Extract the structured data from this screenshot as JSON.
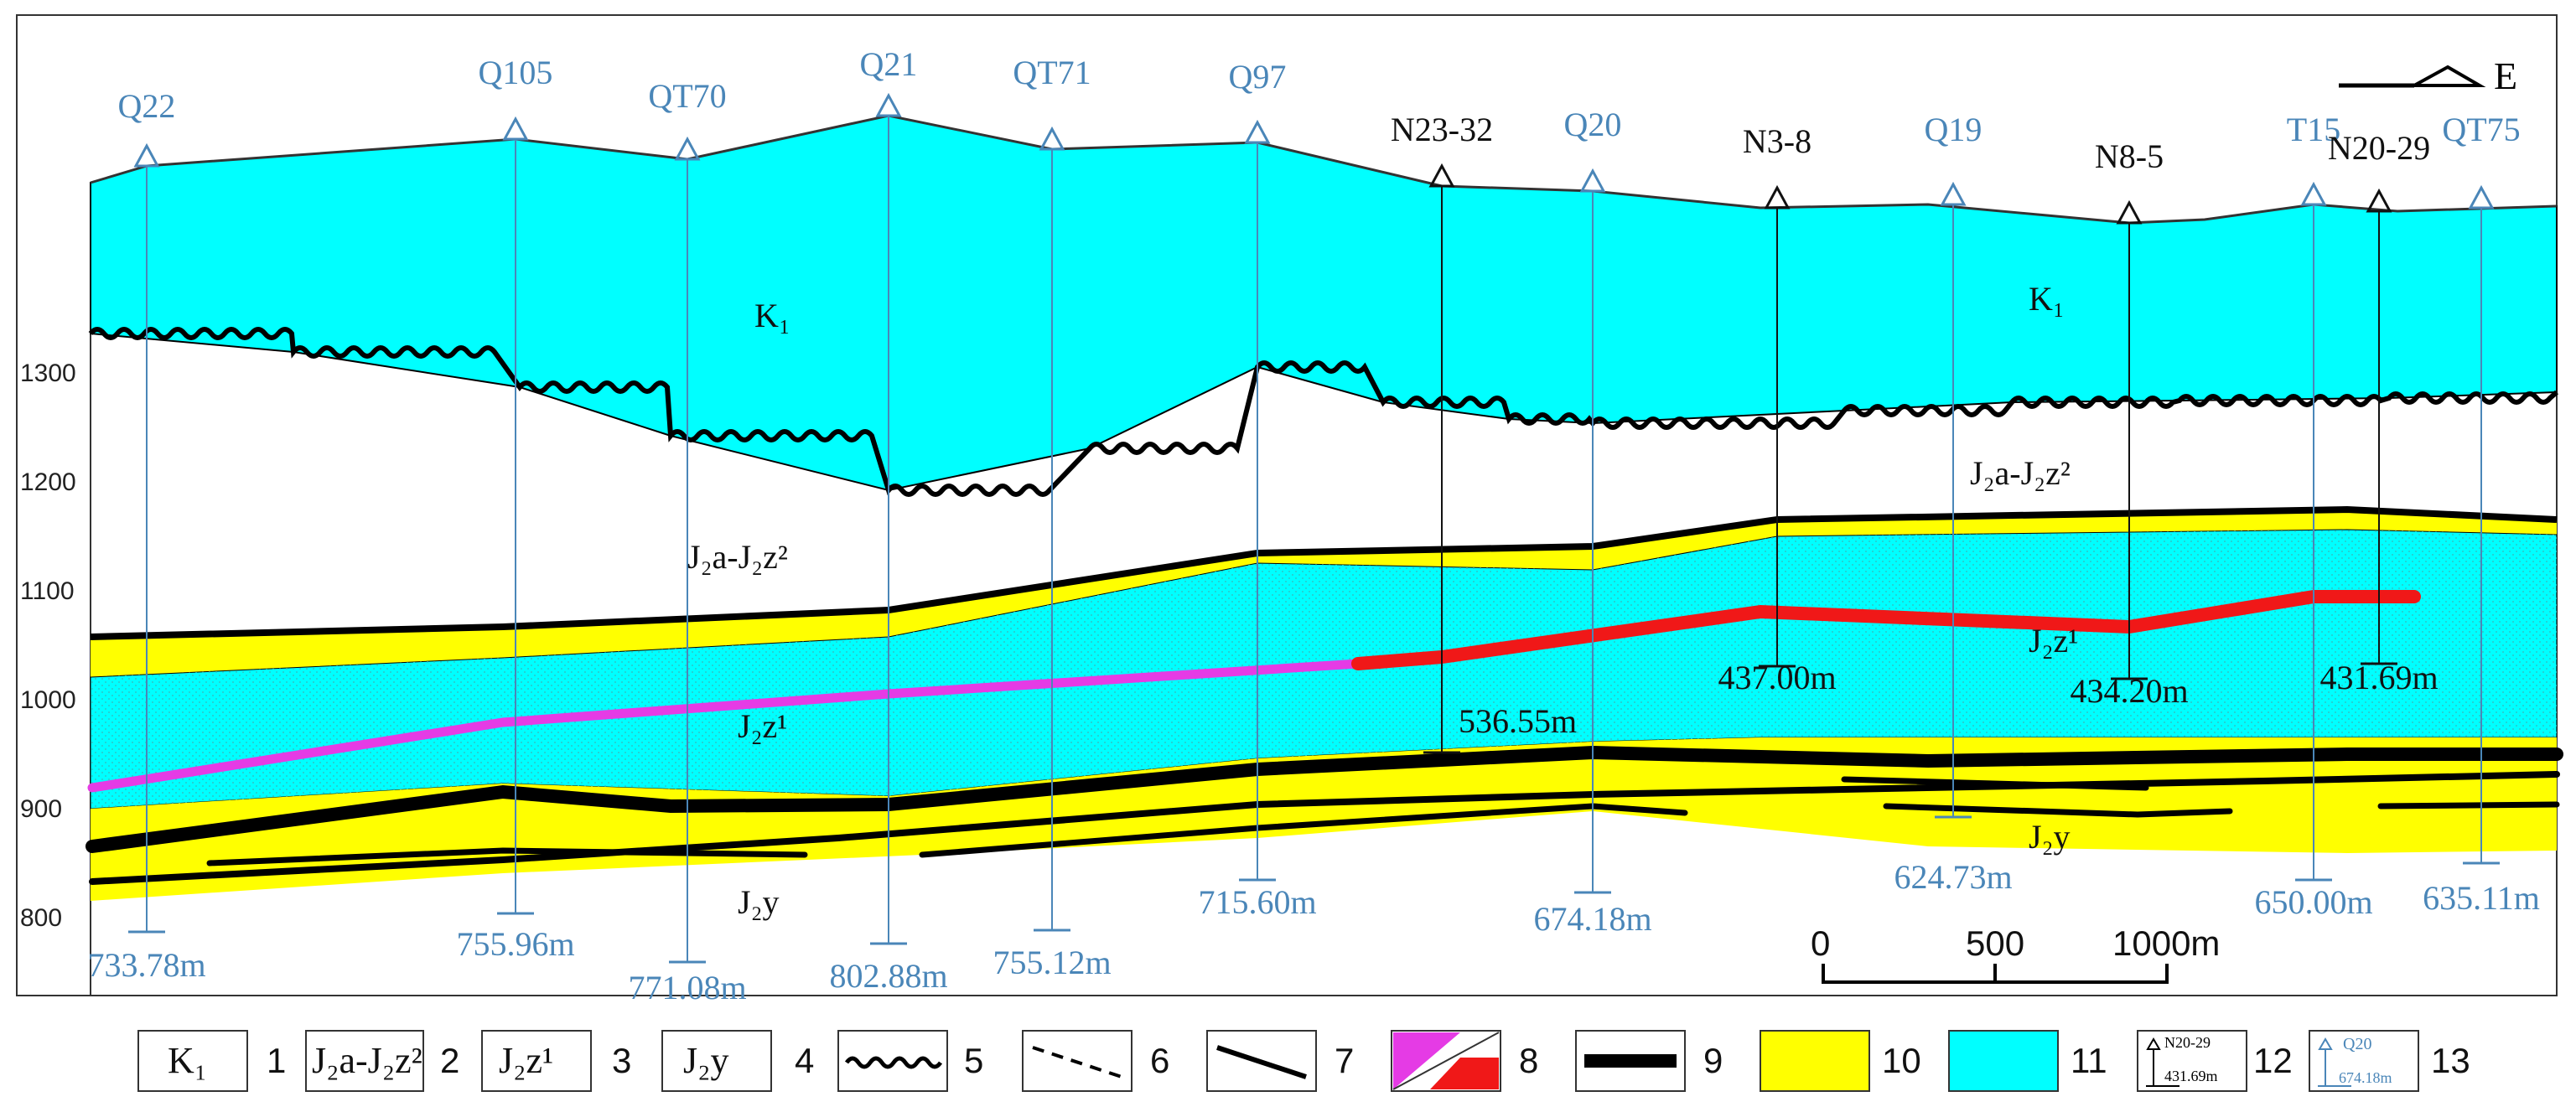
{
  "colors": {
    "cyan": "#00ffff",
    "yellow": "#ffff00",
    "magenta": "#e53be5",
    "red": "#f01818",
    "well_blue": "#4a86b8",
    "black": "#000000"
  },
  "orientation_label": "E",
  "elevation_ticks": [
    "1300",
    "1200",
    "1100",
    "1000",
    "900",
    "800"
  ],
  "unit_labels": {
    "k1_left": "K₁",
    "k1_right": "K₁",
    "j2a_left": "J₂a-J₂z²",
    "j2a_right": "J₂a-J₂z²",
    "j2z1_left": "J₂z¹",
    "j2z1_right": "J₂z¹",
    "j2y_left": "J₂y",
    "j2y_right": "J₂y"
  },
  "wells": [
    {
      "name": "Q22",
      "type": "hydro",
      "depth_label": "733.78m"
    },
    {
      "name": "Q105",
      "type": "hydro",
      "depth_label": "755.96m"
    },
    {
      "name": "QT70",
      "type": "hydro",
      "depth_label": "771.08m"
    },
    {
      "name": "Q21",
      "type": "hydro",
      "depth_label": "802.88m"
    },
    {
      "name": "QT71",
      "type": "hydro",
      "depth_label": "755.12m"
    },
    {
      "name": "Q97",
      "type": "hydro",
      "depth_label": "715.60m"
    },
    {
      "name": "N23-32",
      "type": "drill",
      "depth_label": "536.55m"
    },
    {
      "name": "Q20",
      "type": "hydro",
      "depth_label": "674.18m"
    },
    {
      "name": "N3-8",
      "type": "drill",
      "depth_label": "437.00m"
    },
    {
      "name": "Q19",
      "type": "hydro",
      "depth_label": "624.73m"
    },
    {
      "name": "N8-5",
      "type": "drill",
      "depth_label": "434.20m"
    },
    {
      "name": "T15",
      "type": "hydro",
      "depth_label": "650.00m"
    },
    {
      "name": "N20-29",
      "type": "drill",
      "depth_label": "431.69m"
    },
    {
      "name": "QT75",
      "type": "hydro",
      "depth_label": "635.11m"
    }
  ],
  "scale_bar": {
    "labels": [
      "0",
      "500",
      "1000m"
    ]
  },
  "legend": [
    {
      "num": "1",
      "label": "K₁"
    },
    {
      "num": "2",
      "label": "J₂a-J₂z²"
    },
    {
      "num": "3",
      "label": "J₂z¹"
    },
    {
      "num": "4",
      "label": "J₂y"
    },
    {
      "num": "5",
      "symbol": "unconformity"
    },
    {
      "num": "6",
      "symbol": "inferred-boundary"
    },
    {
      "num": "7",
      "symbol": "stratigraphic-boundary"
    },
    {
      "num": "8",
      "symbol": "ore-body"
    },
    {
      "num": "9",
      "symbol": "coal-seam"
    },
    {
      "num": "10",
      "symbol": "yellow-fill"
    },
    {
      "num": "11",
      "symbol": "cyan-fill"
    },
    {
      "num": "12",
      "symbol": "drill-well",
      "well_name": "N20-29",
      "well_depth": "431.69m"
    },
    {
      "num": "13",
      "symbol": "hydro-well",
      "well_name": "Q20",
      "well_depth": "674.18m"
    }
  ]
}
